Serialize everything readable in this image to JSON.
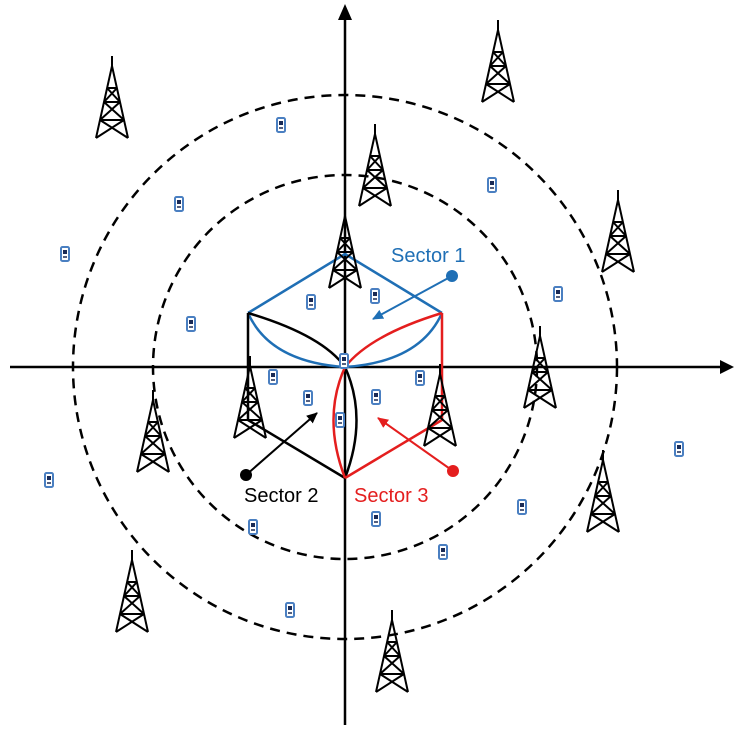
{
  "colors": {
    "sector_1": "#1f6fb5",
    "sector_2": "#000000",
    "sector_3": "#e41e1e",
    "phone_outline": "#4a7fc1",
    "axes": "#000000"
  },
  "sectors": [
    {
      "id": "sector-1",
      "label": "Sector 1",
      "color": "#1f6fb5"
    },
    {
      "id": "sector-2",
      "label": "Sector 2",
      "color": "#000000"
    },
    {
      "id": "sector-3",
      "label": "Sector 3",
      "color": "#e41e1e"
    }
  ],
  "icons": {
    "tower": "cell-tower-icon",
    "phone": "mobile-phone-icon"
  }
}
